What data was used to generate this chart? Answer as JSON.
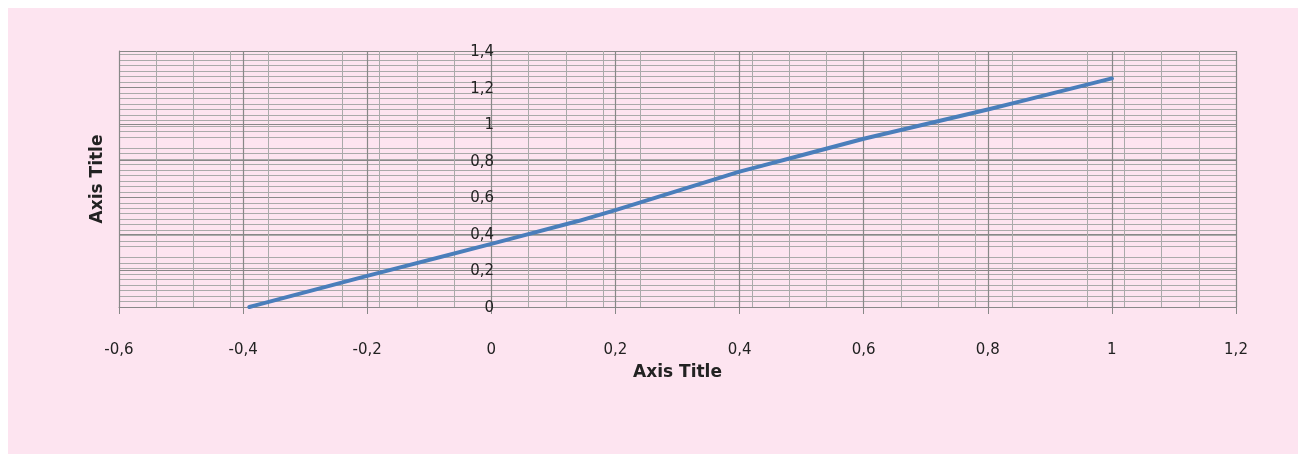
{
  "chart_data": {
    "type": "line",
    "xlabel": "Axis Title",
    "ylabel": "Axis Title",
    "x": [
      -0.39,
      -0.2,
      0,
      0.14,
      0.2,
      0.4,
      0.5,
      0.6,
      0.8,
      1.0
    ],
    "series": [
      {
        "color": "#4a7ebb",
        "values": [
          0,
          0.17,
          0.345,
          0.47,
          0.53,
          0.74,
          0.83,
          0.92,
          1.08,
          1.25
        ]
      }
    ],
    "xlim": [
      -0.6,
      1.2
    ],
    "xticks": [
      {
        "value": -0.6,
        "label": "-0,6"
      },
      {
        "value": -0.4,
        "label": "-0,4"
      },
      {
        "value": -0.2,
        "label": "-0,2"
      },
      0,
      {
        "value": 0.2,
        "label": "0,2"
      },
      {
        "value": 0.4,
        "label": "0,4"
      },
      {
        "value": 0.6,
        "label": "0,6"
      },
      {
        "value": 0.8,
        "label": "0,8"
      },
      1,
      {
        "value": 1.2,
        "label": "1,2"
      }
    ],
    "ylim": [
      0,
      1.4
    ],
    "yticks": [
      0,
      {
        "value": 0.2,
        "label": "0,2"
      },
      {
        "value": 0.4,
        "label": "0,4"
      },
      {
        "value": 0.6,
        "label": "0,6"
      },
      {
        "value": 0.8,
        "label": "0,8"
      },
      1,
      {
        "value": 1.2,
        "label": "1,2"
      },
      {
        "value": 1.4,
        "label": "1,4"
      }
    ],
    "grid": true,
    "marker": "none",
    "line_style": "solid"
  }
}
